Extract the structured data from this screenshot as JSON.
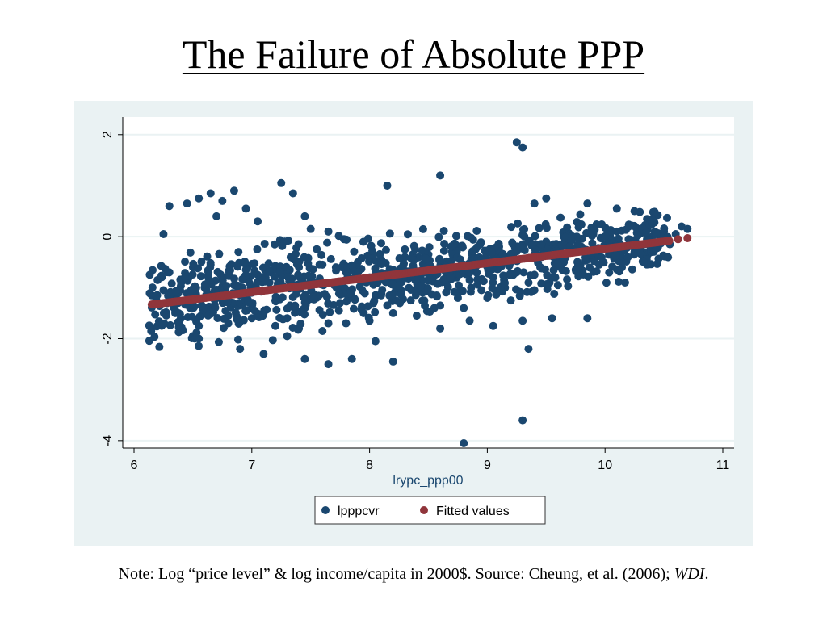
{
  "slide": {
    "title": "The Failure of Absolute PPP",
    "note_prefix": "Note: Log “price level” & log income/capita in 2000$. Source: Cheung, et al. (2006); ",
    "note_italic": "WDI",
    "note_suffix": "."
  },
  "colors": {
    "scatter": "#1a476f",
    "fitted": "#90353b",
    "panel_bg": "#eaf2f3",
    "plot_bg": "#ffffff",
    "grid": "#eaf2f3"
  },
  "chart_data": {
    "type": "scatter",
    "xlabel": "lrypc_ppp00",
    "ylabel": "",
    "xlim": [
      6,
      11
    ],
    "ylim": [
      -4,
      2
    ],
    "xticks": [
      6,
      7,
      8,
      9,
      10,
      11
    ],
    "yticks": [
      -4,
      -2,
      0,
      2
    ],
    "grid": true,
    "legend_position": "bottom",
    "series": [
      {
        "name": "lpppcvr",
        "kind": "scatter",
        "points": [
          [
            6.15,
            -1.15
          ],
          [
            6.2,
            -0.85
          ],
          [
            6.25,
            -1.05
          ],
          [
            6.3,
            -0.7
          ],
          [
            6.35,
            -1.45
          ],
          [
            6.4,
            -0.9
          ],
          [
            6.45,
            -1.3
          ],
          [
            6.5,
            -0.6
          ],
          [
            6.55,
            -1.75
          ],
          [
            6.6,
            -1.0
          ],
          [
            6.65,
            -0.55
          ],
          [
            6.7,
            -1.2
          ],
          [
            6.75,
            -0.8
          ],
          [
            6.8,
            -1.55
          ],
          [
            6.85,
            -0.95
          ],
          [
            6.9,
            -1.35
          ],
          [
            6.95,
            -0.65
          ],
          [
            7.0,
            -1.1
          ],
          [
            7.05,
            -0.75
          ],
          [
            7.1,
            -1.5
          ],
          [
            7.15,
            -0.9
          ],
          [
            7.2,
            -1.25
          ],
          [
            7.25,
            -0.7
          ],
          [
            7.3,
            -1.6
          ],
          [
            7.35,
            -1.0
          ],
          [
            7.4,
            -0.6
          ],
          [
            7.45,
            -1.4
          ],
          [
            7.5,
            -0.85
          ],
          [
            7.55,
            -1.2
          ],
          [
            7.6,
            -0.55
          ],
          [
            7.65,
            -1.7
          ],
          [
            7.7,
            -0.95
          ],
          [
            7.75,
            -1.3
          ],
          [
            7.8,
            -0.7
          ],
          [
            7.85,
            -1.05
          ],
          [
            7.9,
            -0.5
          ],
          [
            7.95,
            -1.5
          ],
          [
            8.0,
            -0.8
          ],
          [
            8.05,
            -1.15
          ],
          [
            8.1,
            -0.45
          ],
          [
            8.15,
            -1.35
          ],
          [
            8.2,
            -0.65
          ],
          [
            8.25,
            -1.0
          ],
          [
            8.3,
            -0.4
          ],
          [
            8.35,
            -1.25
          ],
          [
            8.4,
            -0.75
          ],
          [
            8.45,
            -1.1
          ],
          [
            8.5,
            -0.35
          ],
          [
            8.55,
            -1.4
          ],
          [
            8.6,
            -0.6
          ],
          [
            8.65,
            -0.9
          ],
          [
            8.7,
            -0.3
          ],
          [
            8.75,
            -1.2
          ],
          [
            8.8,
            -0.55
          ],
          [
            8.85,
            -0.85
          ],
          [
            8.9,
            -0.25
          ],
          [
            8.95,
            -1.05
          ],
          [
            9.0,
            -0.45
          ],
          [
            9.05,
            -0.8
          ],
          [
            9.1,
            -0.2
          ],
          [
            9.15,
            -1.0
          ],
          [
            9.2,
            -0.5
          ],
          [
            9.25,
            -0.7
          ],
          [
            9.3,
            -0.15
          ],
          [
            9.35,
            -0.9
          ],
          [
            9.4,
            -0.35
          ],
          [
            9.45,
            -0.6
          ],
          [
            9.5,
            -0.1
          ],
          [
            9.55,
            -0.8
          ],
          [
            9.6,
            -0.3
          ],
          [
            9.65,
            -0.5
          ],
          [
            9.7,
            -0.05
          ],
          [
            9.75,
            -0.65
          ],
          [
            9.8,
            -0.2
          ],
          [
            9.85,
            -0.45
          ],
          [
            9.9,
            0.05
          ],
          [
            9.95,
            -0.55
          ],
          [
            10.0,
            -0.15
          ],
          [
            10.05,
            -0.35
          ],
          [
            10.1,
            0.1
          ],
          [
            10.15,
            -0.45
          ],
          [
            10.2,
            -0.05
          ],
          [
            10.25,
            -0.3
          ],
          [
            10.3,
            0.15
          ],
          [
            10.35,
            -0.35
          ],
          [
            10.4,
            0.0
          ],
          [
            10.45,
            -0.2
          ],
          [
            10.5,
            0.1
          ],
          [
            10.55,
            -0.15
          ],
          [
            10.6,
            0.05
          ],
          [
            10.65,
            0.2
          ],
          [
            10.7,
            0.15
          ],
          [
            6.25,
            0.05
          ],
          [
            6.3,
            0.6
          ],
          [
            6.45,
            0.65
          ],
          [
            6.55,
            0.75
          ],
          [
            6.65,
            0.85
          ],
          [
            6.75,
            0.7
          ],
          [
            6.85,
            0.9
          ],
          [
            6.7,
            0.4
          ],
          [
            6.95,
            0.55
          ],
          [
            7.05,
            0.3
          ],
          [
            7.25,
            1.05
          ],
          [
            7.35,
            0.85
          ],
          [
            7.45,
            0.4
          ],
          [
            7.5,
            0.15
          ],
          [
            7.65,
            0.1
          ],
          [
            8.15,
            1.0
          ],
          [
            8.6,
            1.2
          ],
          [
            9.25,
            1.85
          ],
          [
            9.3,
            1.75
          ],
          [
            9.4,
            0.65
          ],
          [
            9.5,
            0.75
          ],
          [
            9.85,
            0.65
          ],
          [
            10.1,
            0.55
          ],
          [
            10.25,
            0.5
          ],
          [
            6.5,
            -1.95
          ],
          [
            6.55,
            -2.0
          ],
          [
            6.9,
            -2.2
          ],
          [
            7.1,
            -2.3
          ],
          [
            7.3,
            -1.95
          ],
          [
            7.45,
            -2.4
          ],
          [
            7.65,
            -2.5
          ],
          [
            7.85,
            -2.4
          ],
          [
            8.05,
            -2.05
          ],
          [
            8.2,
            -2.45
          ],
          [
            8.6,
            -1.8
          ],
          [
            8.85,
            -1.65
          ],
          [
            9.05,
            -1.75
          ],
          [
            9.3,
            -1.65
          ],
          [
            9.55,
            -1.6
          ],
          [
            9.85,
            -1.6
          ],
          [
            9.35,
            -2.2
          ],
          [
            9.3,
            -3.6
          ],
          [
            8.8,
            -4.05
          ],
          [
            6.35,
            -1.5
          ],
          [
            6.6,
            -1.4
          ],
          [
            6.8,
            -1.7
          ],
          [
            7.0,
            -1.6
          ],
          [
            7.2,
            -1.75
          ],
          [
            7.4,
            -1.8
          ],
          [
            7.6,
            -1.85
          ],
          [
            7.8,
            -1.7
          ],
          [
            8.0,
            -1.65
          ],
          [
            8.2,
            -1.5
          ],
          [
            8.4,
            -1.55
          ],
          [
            8.6,
            -1.35
          ],
          [
            8.8,
            -1.4
          ],
          [
            9.0,
            -1.2
          ],
          [
            9.2,
            -1.25
          ],
          [
            9.4,
            -1.05
          ],
          [
            9.6,
            -0.95
          ]
        ]
      },
      {
        "name": "Fitted values",
        "kind": "line",
        "points": [
          [
            6.15,
            -1.33
          ],
          [
            10.55,
            -0.08
          ],
          [
            10.62,
            -0.05
          ],
          [
            10.7,
            -0.03
          ]
        ]
      }
    ]
  }
}
